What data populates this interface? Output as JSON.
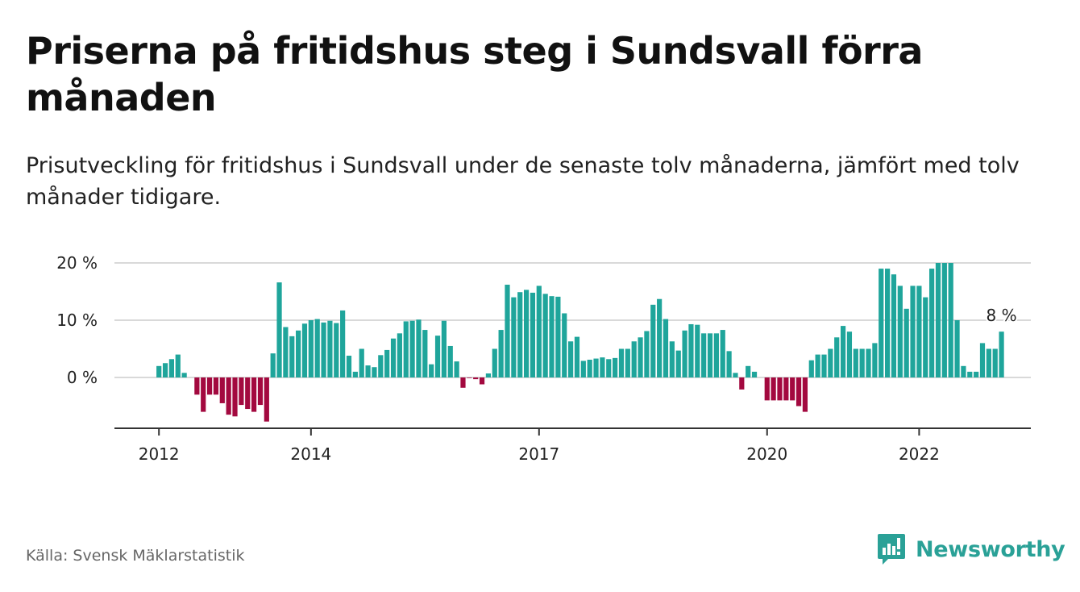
{
  "title": "Priserna på fritidshus steg i Sundsvall förra månaden",
  "subtitle": "Prisutveckling för fritidshus i Sundsvall under de senaste tolv månaderna, jämfört med tolv månader tidigare.",
  "source": "Källa: Svensk Mäklarstatistik",
  "brand": "Newsworthy",
  "colors": {
    "positive": "#1fa59b",
    "negative": "#a3093f",
    "grid": "#d9d9d9",
    "axis": "#333333",
    "brand": "#2aa197"
  },
  "chart_data": {
    "type": "bar",
    "x_start": "2012-01",
    "interval": "month",
    "y_ticks": [
      {
        "value": 0,
        "label": "0 %"
      },
      {
        "value": 10,
        "label": "10 %"
      },
      {
        "value": 20,
        "label": "20 %"
      }
    ],
    "x_ticks": [
      {
        "index": 0,
        "label": "2012"
      },
      {
        "index": 24,
        "label": "2014"
      },
      {
        "index": 60,
        "label": "2017"
      },
      {
        "index": 96,
        "label": "2020"
      },
      {
        "index": 120,
        "label": "2022"
      }
    ],
    "ylim": [
      -8.5,
      20
    ],
    "values": [
      2,
      2.5,
      3.2,
      4,
      0.8,
      null,
      -3,
      -6,
      -3,
      -3,
      -4.5,
      -6.5,
      -6.8,
      -4.8,
      -5.5,
      -6,
      -4.8,
      -7.7,
      4.2,
      16.6,
      8.8,
      7.2,
      8.2,
      9.4,
      10,
      10.2,
      9.6,
      9.9,
      9.5,
      11.7,
      3.8,
      1,
      5,
      2.1,
      1.8,
      3.9,
      4.8,
      6.8,
      7.7,
      9.8,
      9.9,
      10.1,
      8.3,
      2.3,
      7.3,
      9.9,
      5.5,
      2.8,
      -1.8,
      -0.1,
      -0.3,
      -1.2,
      0.7,
      5,
      8.3,
      16.2,
      14,
      14.9,
      15.3,
      14.8,
      16,
      14.6,
      14.2,
      14.1,
      11.2,
      6.3,
      7.1,
      2.9,
      3.1,
      3.3,
      3.5,
      3.2,
      3.4,
      5,
      5,
      6.3,
      7,
      8.1,
      12.7,
      13.7,
      10.2,
      6.3,
      4.7,
      8.2,
      9.3,
      9.2,
      7.7,
      7.7,
      7.7,
      8.3,
      4.6,
      0.8,
      -2.1,
      2,
      1,
      null,
      -4,
      -4,
      -4,
      -4,
      -4,
      -5,
      -6,
      3,
      4,
      4,
      5,
      7,
      9,
      8,
      5,
      5,
      5,
      6,
      19,
      19,
      18,
      16,
      12,
      16,
      16,
      14,
      19,
      20,
      20,
      20,
      10,
      2,
      1,
      1,
      6,
      5,
      5,
      8
    ],
    "last_value_label": "8 %"
  }
}
